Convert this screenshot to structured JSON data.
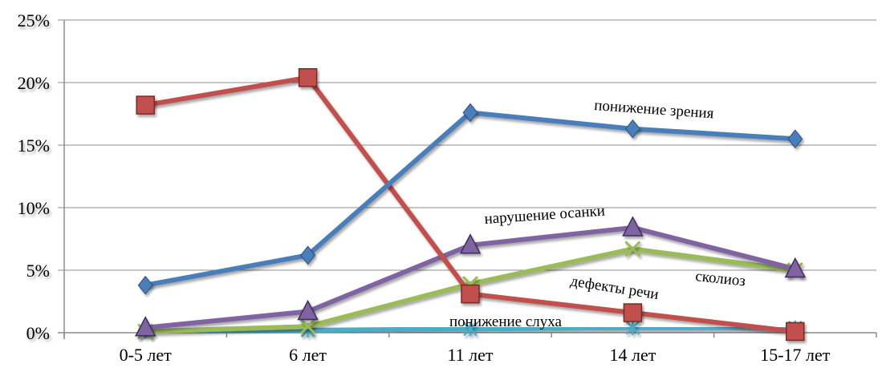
{
  "chart_data": {
    "type": "line",
    "title": "",
    "xlabel": "",
    "ylabel": "",
    "categories": [
      "0-5 лет",
      "6 лет",
      "11 лет",
      "14 лет",
      "15-17 лет"
    ],
    "y_ticks": [
      "0%",
      "5%",
      "10%",
      "15%",
      "20%",
      "25%"
    ],
    "ylim": [
      0,
      25
    ],
    "y_unit": "%",
    "grid": true,
    "legend": "none (series labelled directly on chart)",
    "series": [
      {
        "name": "понижение зрения",
        "color": "#4a7ebb",
        "marker": "diamond",
        "values": [
          3.8,
          6.2,
          17.6,
          16.3,
          15.5
        ]
      },
      {
        "name": "",
        "color": "#c0504d",
        "marker": "square",
        "values": [
          18.2,
          20.4,
          3.1,
          1.6,
          0.1
        ]
      },
      {
        "name": "нарушение осанки",
        "color": "#8064a2",
        "marker": "triangle",
        "values": [
          0.4,
          1.7,
          7.0,
          8.4,
          5.1
        ]
      },
      {
        "name": "сколиоз",
        "color": "#9bbb59",
        "marker": "x",
        "values": [
          0.1,
          0.5,
          3.9,
          6.7,
          5.0
        ]
      },
      {
        "name": "понижение слуха",
        "color": "#4bacc6",
        "marker": "star",
        "values": [
          0.1,
          0.2,
          0.3,
          0.4,
          0.4
        ]
      }
    ],
    "annotations": [
      {
        "text": "понижение зрения",
        "series": 0
      },
      {
        "text": "нарушение осанки",
        "series": 2
      },
      {
        "text": "сколиоз",
        "series": 3
      },
      {
        "text": "дефекты речи",
        "series": 1
      },
      {
        "text": "понижение слуха",
        "series": 4
      }
    ]
  }
}
